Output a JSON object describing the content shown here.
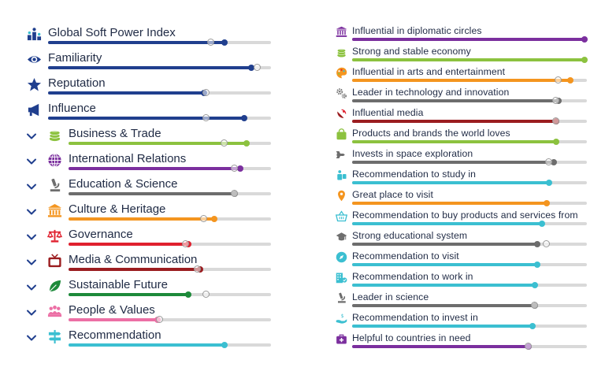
{
  "colors": {
    "navy": "#203f8e",
    "green": "#8cc23f",
    "purple": "#7b2f9e",
    "gray": "#6d6d6d",
    "orange": "#f4951f",
    "red": "#e0202e",
    "maroon": "#9b1d20",
    "dkgreen": "#1d8a3a",
    "pink": "#ec6fa5",
    "teal": "#3bbfd1",
    "track": "#d9d9d9"
  },
  "left": {
    "rows": [
      {
        "label": "Global Soft Power Index",
        "icon": "podium-icon",
        "expandable": false,
        "color": "navy",
        "value": 0.79,
        "compare": 0.73
      },
      {
        "label": "Familiarity",
        "icon": "eye-icon",
        "expandable": false,
        "color": "navy",
        "value": 0.91,
        "compare": 0.94
      },
      {
        "label": "Reputation",
        "icon": "star-icon",
        "expandable": false,
        "color": "navy",
        "value": 0.7,
        "compare": 0.71
      },
      {
        "label": "Influence",
        "icon": "megaphone-icon",
        "expandable": false,
        "color": "navy",
        "value": 0.88,
        "compare": 0.71
      },
      {
        "label": "Business & Trade",
        "icon": "coins-icon",
        "expandable": true,
        "color": "green",
        "value": 0.88,
        "compare": 0.77
      },
      {
        "label": "International Relations",
        "icon": "globe-icon",
        "expandable": true,
        "color": "purple",
        "value": 0.85,
        "compare": 0.82
      },
      {
        "label": "Education & Science",
        "icon": "microscope-icon",
        "expandable": true,
        "color": "gray",
        "value": 0.82,
        "compare": 0.82
      },
      {
        "label": "Culture & Heritage",
        "icon": "temple-icon",
        "expandable": true,
        "color": "orange",
        "value": 0.72,
        "compare": 0.67
      },
      {
        "label": "Governance",
        "icon": "scales-icon",
        "expandable": true,
        "color": "red",
        "value": 0.59,
        "compare": 0.58
      },
      {
        "label": "Media & Communication",
        "icon": "tv-icon",
        "expandable": true,
        "color": "maroon",
        "value": 0.65,
        "compare": 0.64
      },
      {
        "label": "Sustainable Future",
        "icon": "leaf-icon",
        "expandable": true,
        "color": "dkgreen",
        "value": 0.59,
        "compare": 0.68
      },
      {
        "label": "People & Values",
        "icon": "people-icon",
        "expandable": true,
        "color": "pink",
        "value": 0.44,
        "compare": 0.45
      },
      {
        "label": "Recommendation",
        "icon": "signpost-icon",
        "expandable": true,
        "color": "teal",
        "value": 0.77,
        "compare": null
      }
    ]
  },
  "right": {
    "rows": [
      {
        "label": "Influential in diplomatic circles",
        "icon": "building-icon",
        "color": "purple",
        "value": 0.99,
        "compare": null
      },
      {
        "label": "Strong and stable economy",
        "icon": "coins-icon",
        "color": "green",
        "value": 0.99,
        "compare": null
      },
      {
        "label": "Influential in arts and entertainment",
        "icon": "palette-icon",
        "color": "orange",
        "value": 0.93,
        "compare": 0.88
      },
      {
        "label": "Leader in technology and innovation",
        "icon": "gears-icon",
        "color": "gray",
        "value": 0.88,
        "compare": 0.87
      },
      {
        "label": "Influential media",
        "icon": "satellite-icon",
        "color": "maroon",
        "value": 0.87,
        "compare": 0.87
      },
      {
        "label": "Products and brands the world loves",
        "icon": "bag-icon",
        "color": "green",
        "value": 0.87,
        "compare": null
      },
      {
        "label": "Invests in space exploration",
        "icon": "rocket-icon",
        "color": "gray",
        "value": 0.86,
        "compare": 0.84
      },
      {
        "label": "Recommendation to study in",
        "icon": "student-icon",
        "color": "teal",
        "value": 0.84,
        "compare": null
      },
      {
        "label": "Great place to visit",
        "icon": "pin-icon",
        "color": "orange",
        "value": 0.83,
        "compare": null
      },
      {
        "label": "Recommendation to buy products and services from",
        "icon": "basket-icon",
        "color": "teal",
        "value": 0.81,
        "compare": null
      },
      {
        "label": "Strong educational system",
        "icon": "graduation-cap-icon",
        "color": "gray",
        "value": 0.79,
        "compare": 0.83
      },
      {
        "label": "Recommendation to visit",
        "icon": "compass-icon",
        "color": "teal",
        "value": 0.79,
        "compare": null
      },
      {
        "label": "Recommendation to work in",
        "icon": "office-icon",
        "color": "teal",
        "value": 0.78,
        "compare": null
      },
      {
        "label": "Leader in science",
        "icon": "microscope-icon",
        "color": "gray",
        "value": 0.78,
        "compare": 0.78
      },
      {
        "label": "Recommendation to invest in",
        "icon": "hand-money-icon",
        "color": "teal",
        "value": 0.77,
        "compare": null
      },
      {
        "label": "Helpful to countries in need",
        "icon": "medkit-icon",
        "color": "purple",
        "value": 0.75,
        "compare": 0.75
      }
    ]
  }
}
